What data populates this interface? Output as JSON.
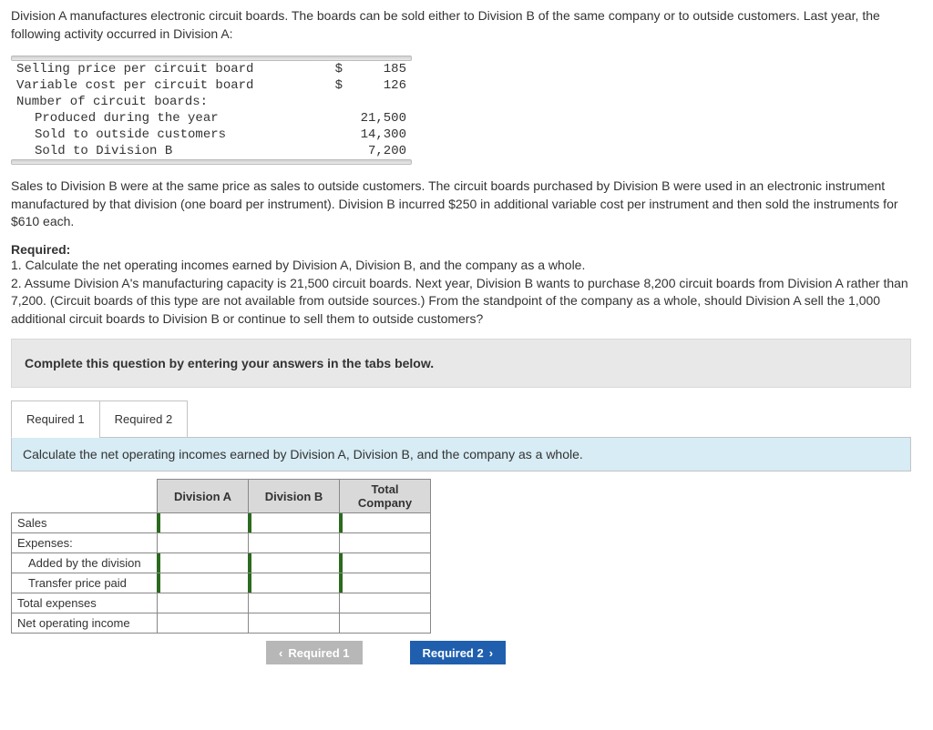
{
  "intro": "Division A manufactures electronic circuit boards. The boards can be sold either to Division B of the same company or to outside customers. Last year, the following activity occurred in Division A:",
  "data_rows": [
    {
      "label": "Selling price per circuit board",
      "sym": "$",
      "num": "185",
      "indent": false
    },
    {
      "label": "Variable cost per circuit board",
      "sym": "$",
      "num": "126",
      "indent": false
    },
    {
      "label": "Number of circuit boards:",
      "sym": "",
      "num": "",
      "indent": false
    },
    {
      "label": "Produced during the year",
      "sym": "",
      "num": "21,500",
      "indent": true
    },
    {
      "label": "Sold to outside customers",
      "sym": "",
      "num": "14,300",
      "indent": true
    },
    {
      "label": "Sold to Division B",
      "sym": "",
      "num": "7,200",
      "indent": true
    }
  ],
  "para2": "Sales to Division B were at the same price as sales to outside customers. The circuit boards purchased by Division B were used in an electronic instrument manufactured by that division (one board per instrument). Division B incurred $250 in additional variable cost per instrument and then sold the instruments for $610 each.",
  "req_head": "Required:",
  "req1": "1. Calculate the net operating incomes earned by Division A, Division B, and the company as a whole.",
  "req2": "2. Assume Division A's manufacturing capacity is 21,500 circuit boards. Next year, Division B wants to purchase 8,200 circuit boards from Division A rather than 7,200. (Circuit boards of this type are not available from outside sources.) From the standpoint of the company as a whole, should Division A sell the 1,000 additional circuit boards to Division B or continue to sell them to outside customers?",
  "instruction": "Complete this question by entering your answers in the tabs below.",
  "tabs": {
    "t1": "Required 1",
    "t2": "Required 2"
  },
  "tab_instruction": "Calculate the net operating incomes earned by Division A, Division B, and the company as a whole.",
  "table": {
    "headers": [
      "Division A",
      "Division B",
      "Total Company"
    ],
    "rows": [
      {
        "label": "Sales",
        "indent": false,
        "editable": true
      },
      {
        "label": "Expenses:",
        "indent": false,
        "editable": false
      },
      {
        "label": "Added by the division",
        "indent": true,
        "editable": true
      },
      {
        "label": "Transfer price paid",
        "indent": true,
        "editable": true
      },
      {
        "label": "Total expenses",
        "indent": false,
        "editable": false
      },
      {
        "label": "Net operating income",
        "indent": false,
        "editable": false
      }
    ]
  },
  "nav": {
    "prev": "Required 1",
    "next": "Required 2"
  },
  "colors": {
    "tab_instruction_bg": "#d7ecf4",
    "tick": "#2b6a1f",
    "nav_enabled": "#1f5fae",
    "nav_disabled": "#b7b7b7"
  }
}
